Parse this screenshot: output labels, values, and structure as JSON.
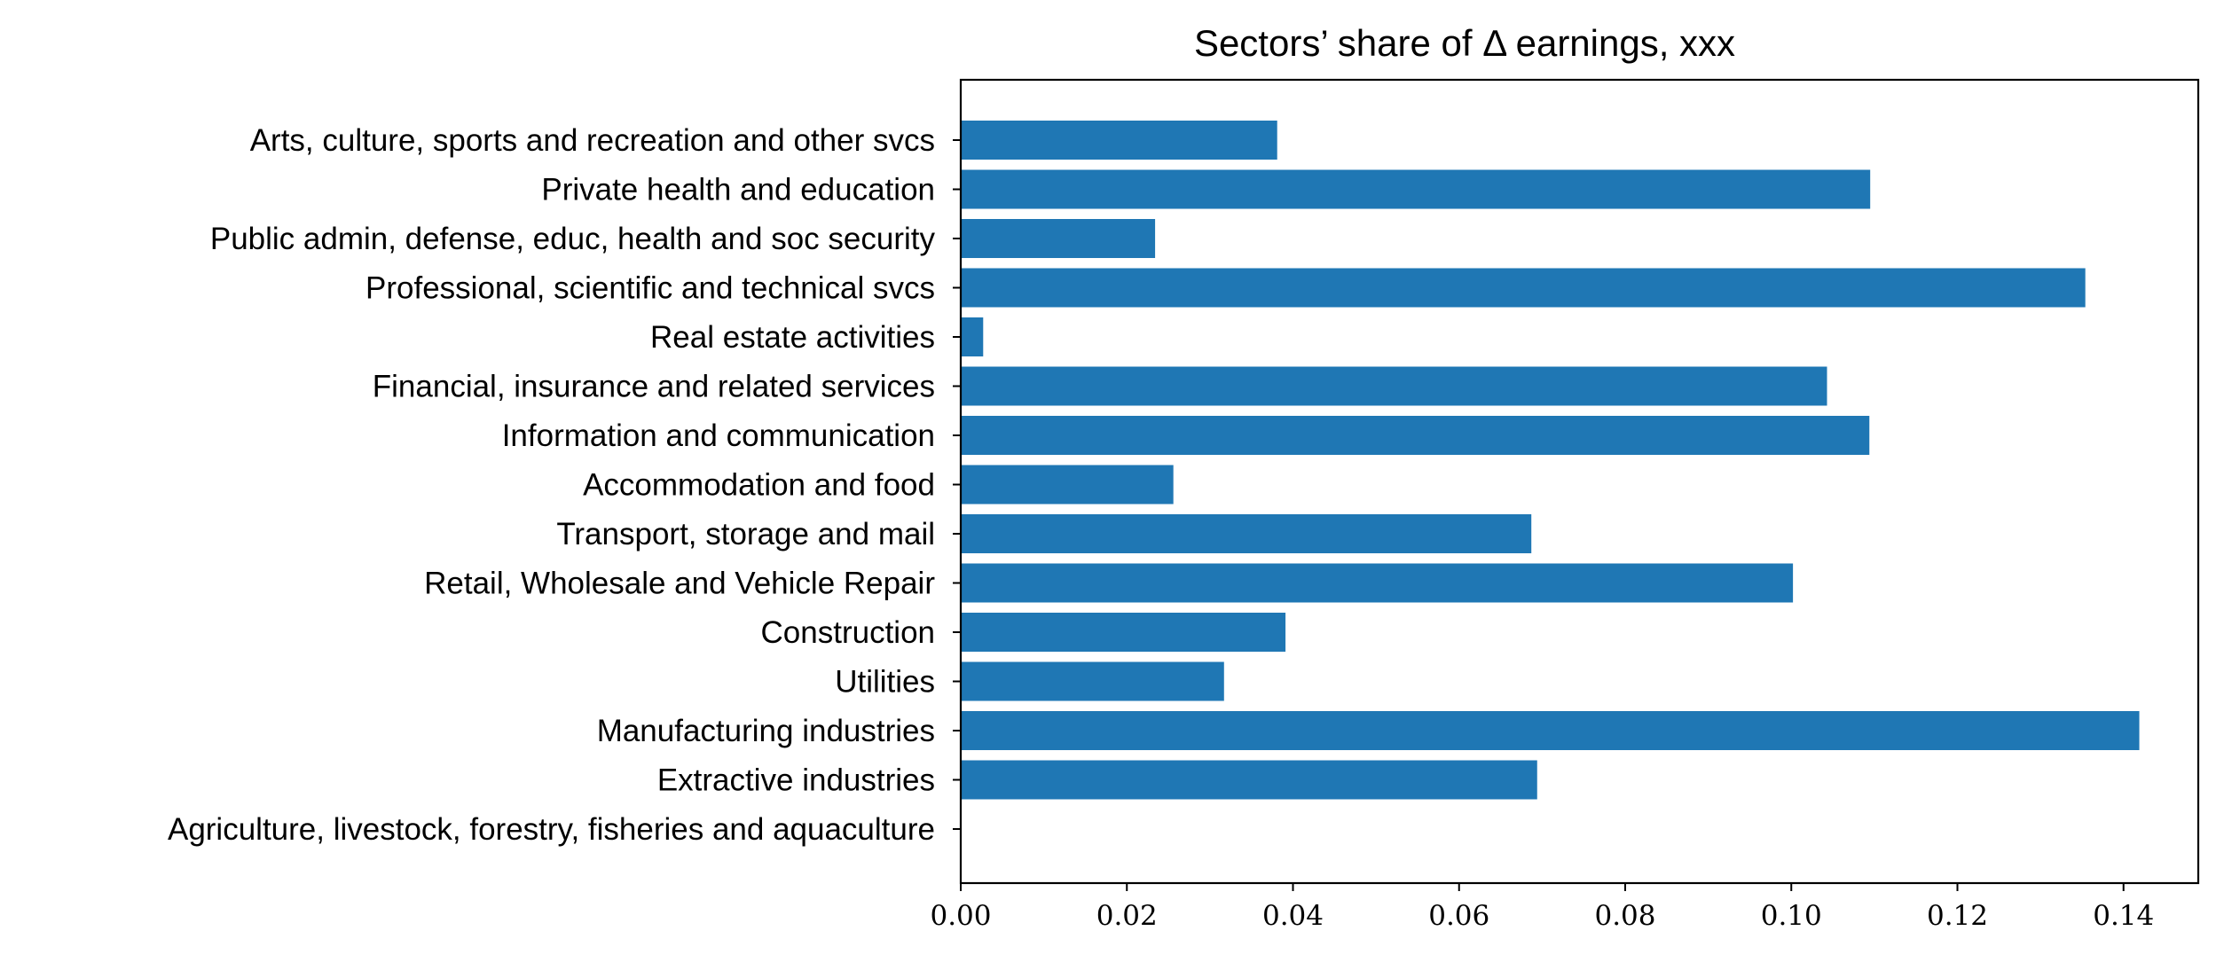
{
  "chart_data": {
    "type": "bar",
    "orientation": "horizontal",
    "title": "Sectors’ share of Δ earnings, xxx",
    "xlabel": "",
    "ylabel": "",
    "xlim": [
      0,
      0.149
    ],
    "xticks": [
      0.0,
      0.02,
      0.04,
      0.06,
      0.08,
      0.1,
      0.12,
      0.14
    ],
    "xtick_labels": [
      "0.00",
      "0.02",
      "0.04",
      "0.06",
      "0.08",
      "0.10",
      "0.12",
      "0.14"
    ],
    "grid": false,
    "bar_color": "#1f77b4",
    "categories": [
      "Agriculture, livestock, forestry, fisheries and aquaculture",
      "Extractive industries",
      "Manufacturing industries",
      "Utilities",
      "Construction",
      "Retail, Wholesale and Vehicle Repair",
      "Transport, storage and mail",
      "Accommodation and food",
      "Information and communication",
      "Financial, insurance and related services",
      "Real estate activities",
      "Professional, scientific and technical svcs",
      "Public admin, defense, educ, health and soc security",
      "Private health and education",
      "Arts, culture, sports and recreation and other svcs"
    ],
    "values": [
      0.0,
      0.0694,
      0.1419,
      0.0317,
      0.0391,
      0.1002,
      0.0687,
      0.0256,
      0.1094,
      0.1043,
      0.0027,
      0.1354,
      0.0234,
      0.1095,
      0.0381
    ]
  }
}
